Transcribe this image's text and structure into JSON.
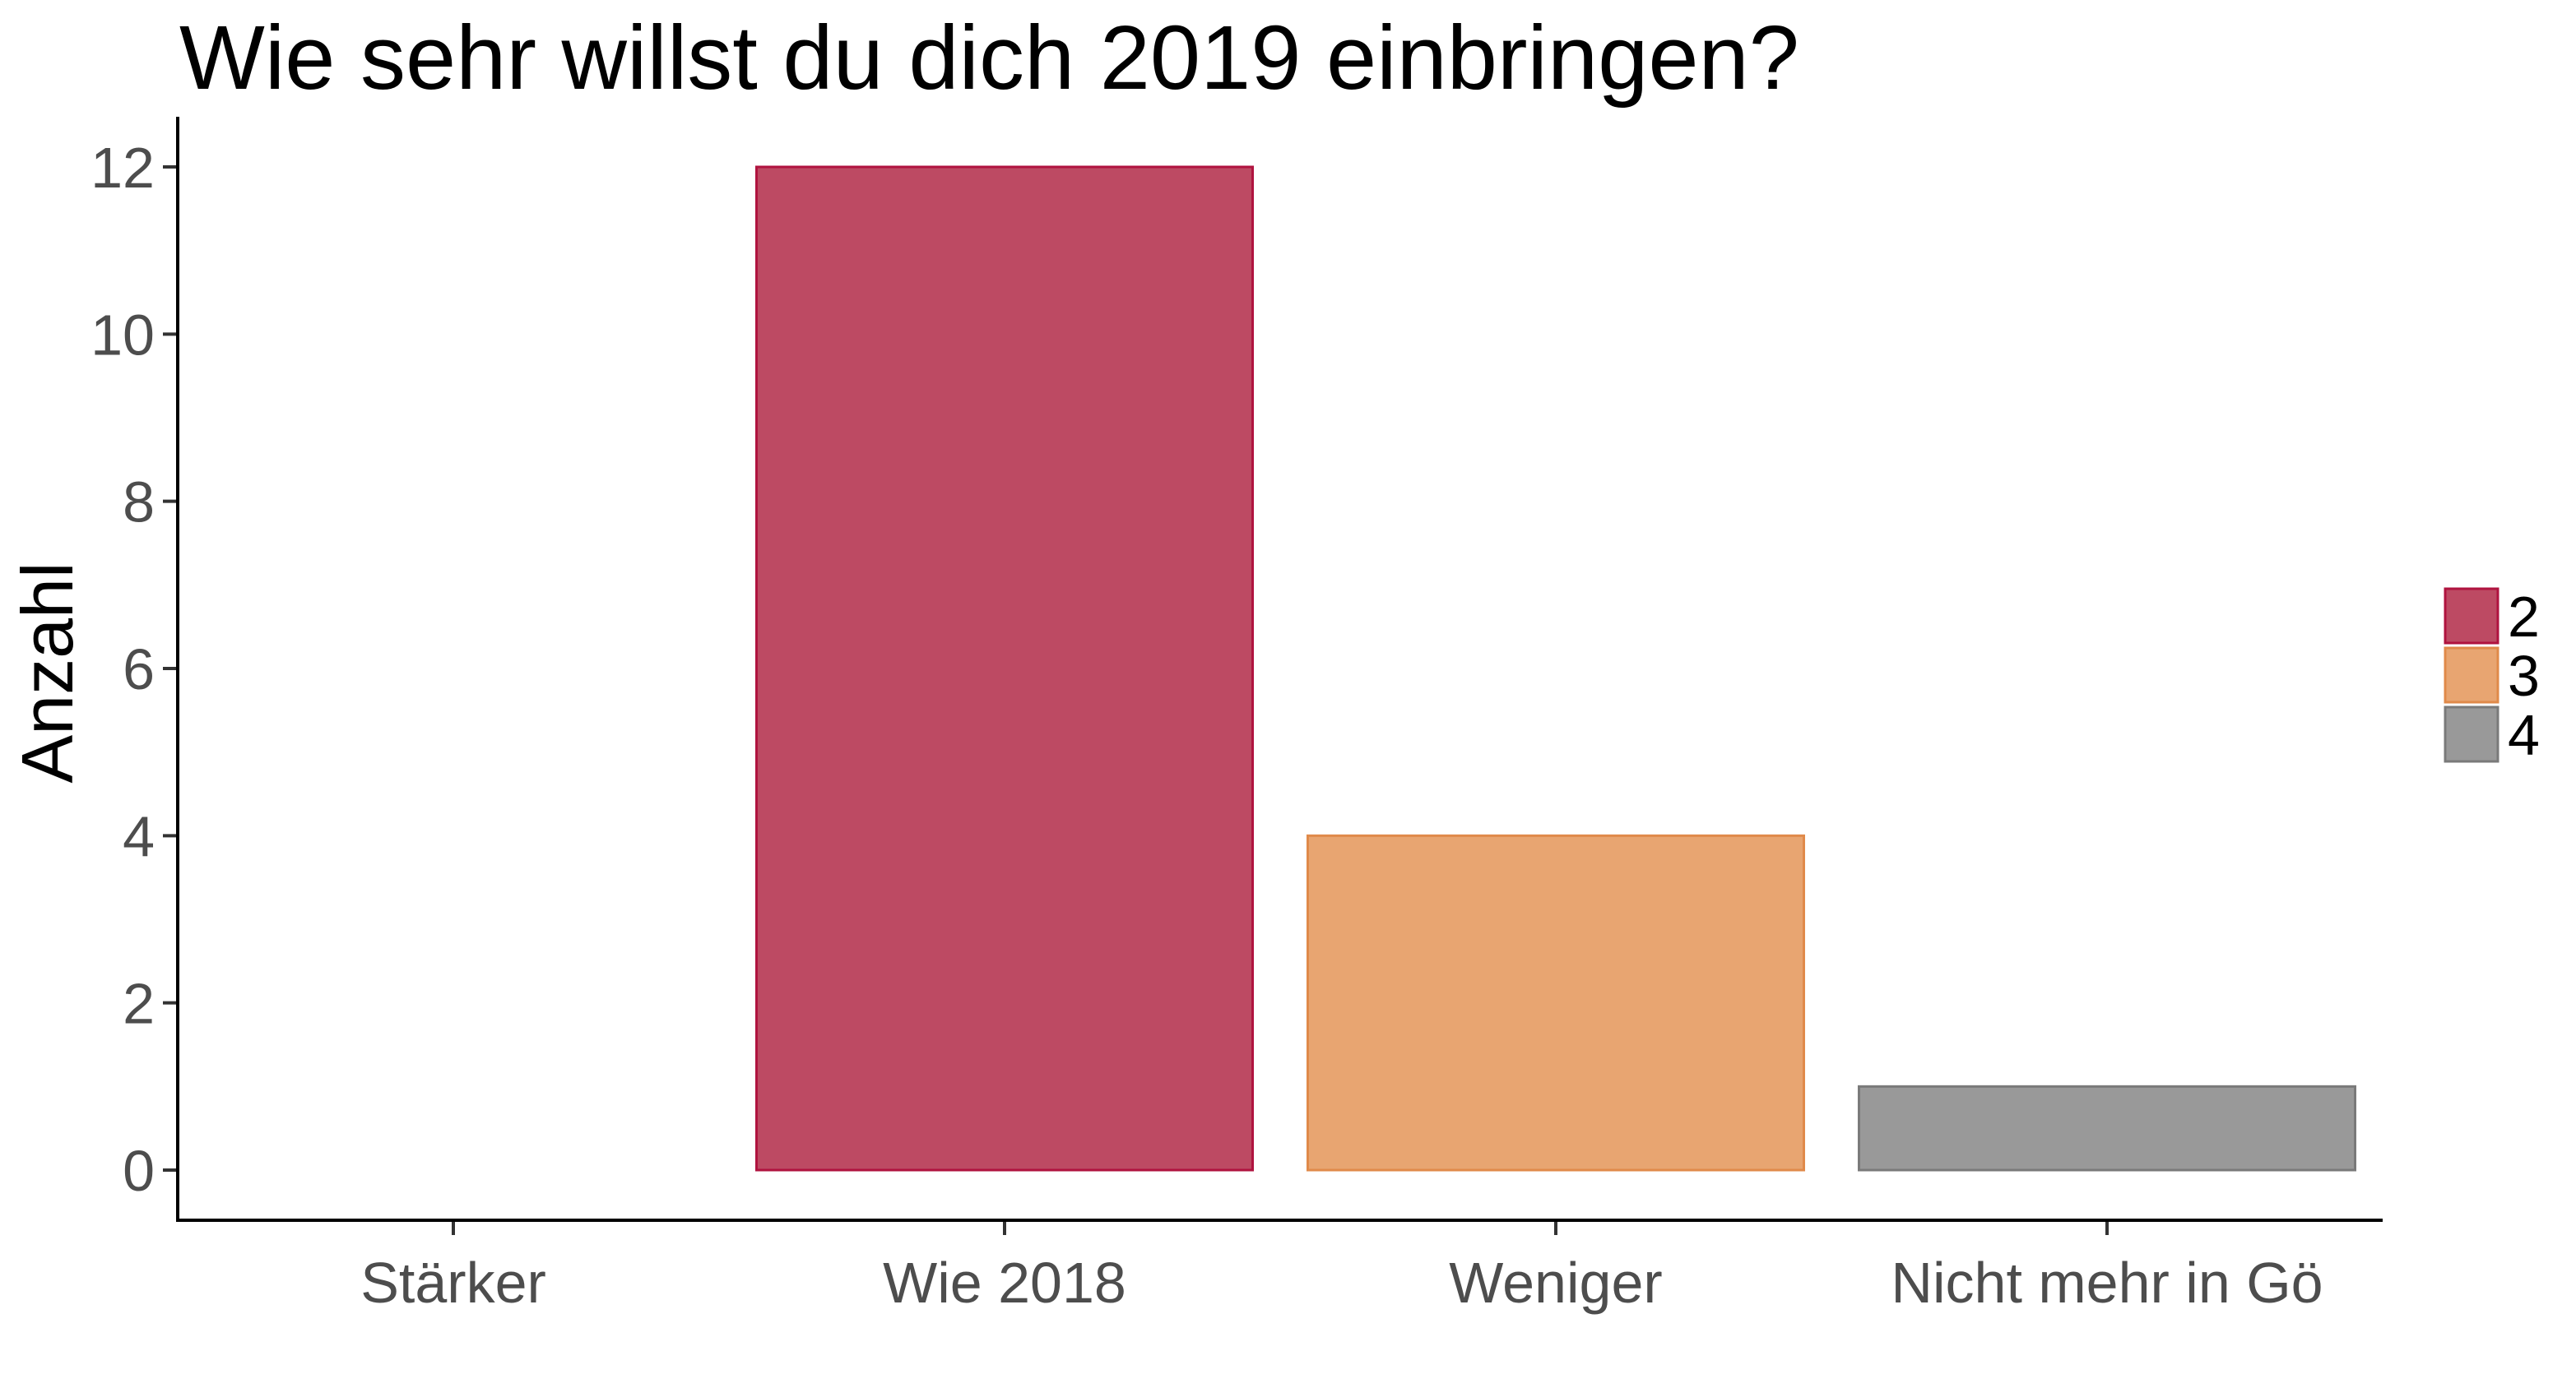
{
  "chart_data": {
    "type": "bar",
    "title": "Wie sehr willst du dich 2019 einbringen?",
    "xlabel": "",
    "ylabel": "Anzahl",
    "categories": [
      "Stärker",
      "Wie 2018",
      "Weniger",
      "Nicht mehr in Gö"
    ],
    "values": [
      0,
      12,
      4,
      1
    ],
    "bar_fills": [
      null,
      "#bd4a63",
      "#e8a571",
      "#999999"
    ],
    "bar_strokes": [
      null,
      "#b0133f",
      "#e08a4a",
      "#7a7a7a"
    ],
    "ylim": [
      -0.6,
      12.6
    ],
    "yticks": [
      0,
      2,
      4,
      6,
      8,
      10,
      12
    ],
    "grid": false,
    "legend": {
      "position": "right",
      "entries": [
        {
          "label": "2",
          "fill": "#bd4a63",
          "stroke": "#b0133f"
        },
        {
          "label": "3",
          "fill": "#e8a571",
          "stroke": "#e08a4a"
        },
        {
          "label": "4",
          "fill": "#999999",
          "stroke": "#7a7a7a"
        }
      ]
    }
  }
}
